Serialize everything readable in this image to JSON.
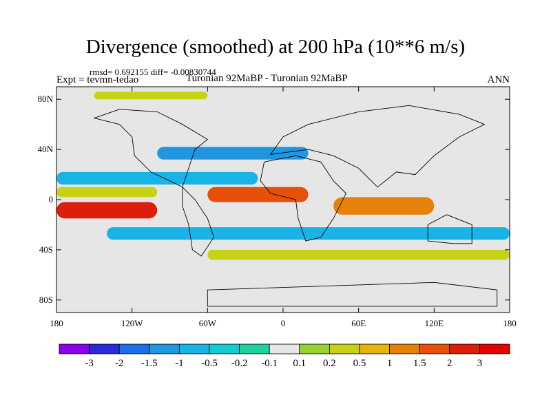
{
  "header": {
    "title": "Divergence (smoothed) at 200 hPa (10**6 m/s)",
    "stats": "rmsd= 0.692155 diff= -0.00830744",
    "expt": "Expt = tevmn-tedao",
    "experiments": "Turonian  92MaBP - Turonian  92MaBP",
    "season": "ANN"
  },
  "chart_data": {
    "type": "heatmap",
    "title": "Divergence (smoothed) at 200 hPa (10**6 m/s)",
    "xlabel": "",
    "ylabel": "",
    "xlim": [
      -180,
      180
    ],
    "ylim": [
      -90,
      90
    ],
    "x_ticks": [
      {
        "value": -180,
        "label": "180"
      },
      {
        "value": -120,
        "label": "120W"
      },
      {
        "value": -60,
        "label": "60W"
      },
      {
        "value": 0,
        "label": "0"
      },
      {
        "value": 60,
        "label": "60E"
      },
      {
        "value": 120,
        "label": "120E"
      },
      {
        "value": 180,
        "label": "180"
      }
    ],
    "y_ticks": [
      {
        "value": 80,
        "label": "80N"
      },
      {
        "value": 40,
        "label": "40N"
      },
      {
        "value": 0,
        "label": "0"
      },
      {
        "value": -40,
        "label": "40S"
      },
      {
        "value": -80,
        "label": "80S"
      }
    ],
    "levels": [
      "-3",
      "-2",
      "-1.5",
      "-1",
      "-0.5",
      "-0.2",
      "-0.1",
      "0.1",
      "0.2",
      "0.5",
      "1",
      "1.5",
      "2",
      "3"
    ],
    "colorbar_colors": [
      "#8c00f0",
      "#2a2adf",
      "#1e6ee6",
      "#1e96e0",
      "#18b4e6",
      "#14cdd2",
      "#1ed2a0",
      "#e6e6e6",
      "#96d232",
      "#c8d214",
      "#e6b40a",
      "#e6820a",
      "#e6500a",
      "#dc1e0a",
      "#e60000"
    ],
    "features": [
      {
        "kind": "band",
        "lon": [
          -180,
          180
        ],
        "lat": [
          -90,
          90
        ],
        "category": 7,
        "label": "near zero background"
      },
      {
        "kind": "band",
        "lon": [
          -180,
          -20
        ],
        "lat": [
          12,
          22
        ],
        "category": 4,
        "label": "northern tropical convergence"
      },
      {
        "kind": "band",
        "lon": [
          -180,
          -100
        ],
        "lat": [
          2,
          10
        ],
        "category": 9,
        "label": "northern tropical divergence"
      },
      {
        "kind": "band",
        "lon": [
          -180,
          -100
        ],
        "lat": [
          -15,
          -2
        ],
        "category": 13,
        "label": "central Pacific divergence maximum"
      },
      {
        "kind": "band",
        "lon": [
          -60,
          20
        ],
        "lat": [
          -2,
          10
        ],
        "category": 12,
        "label": "Atlantic divergence maximum"
      },
      {
        "kind": "band",
        "lon": [
          40,
          120
        ],
        "lat": [
          -12,
          2
        ],
        "category": 11,
        "label": "Indian Ocean divergence"
      },
      {
        "kind": "band",
        "lon": [
          -140,
          180
        ],
        "lat": [
          -32,
          -22
        ],
        "category": 4,
        "label": "southern subtropical convergence"
      },
      {
        "kind": "band",
        "lon": [
          -60,
          180
        ],
        "lat": [
          -48,
          -40
        ],
        "category": 9,
        "label": "southern midlatitude divergence"
      },
      {
        "kind": "band",
        "lon": [
          -100,
          20
        ],
        "lat": [
          32,
          42
        ],
        "category": 3,
        "label": "northern subtropical convergence"
      },
      {
        "kind": "band",
        "lon": [
          -150,
          -60
        ],
        "lat": [
          80,
          86
        ],
        "category": 9,
        "label": "arctic divergence"
      }
    ]
  }
}
